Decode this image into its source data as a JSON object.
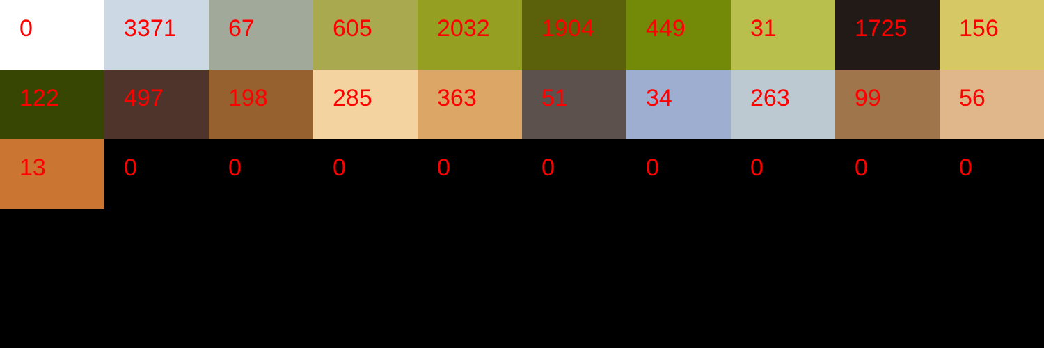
{
  "label_color": "#ff0000",
  "background_color": "#000000",
  "swatches": [
    {
      "color": "#ffffff",
      "count": "0"
    },
    {
      "color": "#cdd8e5",
      "count": "3371"
    },
    {
      "color": "#a1aa9a",
      "count": "67"
    },
    {
      "color": "#a9a950",
      "count": "605"
    },
    {
      "color": "#95a022",
      "count": "2032"
    },
    {
      "color": "#5b600a",
      "count": "1904"
    },
    {
      "color": "#738908",
      "count": "449"
    },
    {
      "color": "#b8bf4d",
      "count": "31"
    },
    {
      "color": "#221a16",
      "count": "1725"
    },
    {
      "color": "#d6c865",
      "count": "156"
    },
    {
      "color": "#374603",
      "count": "122"
    },
    {
      "color": "#4e342a",
      "count": "497"
    },
    {
      "color": "#96602f",
      "count": "198"
    },
    {
      "color": "#f3d4a0",
      "count": "285"
    },
    {
      "color": "#dca766",
      "count": "363"
    },
    {
      "color": "#5d514d",
      "count": "51"
    },
    {
      "color": "#9eaed1",
      "count": "34"
    },
    {
      "color": "#bdc9d1",
      "count": "263"
    },
    {
      "color": "#9f754c",
      "count": "99"
    },
    {
      "color": "#e0b68b",
      "count": "56"
    },
    {
      "color": "#cb7533",
      "count": "13"
    },
    {
      "color": "#000000",
      "count": "0"
    },
    {
      "color": "#000000",
      "count": "0"
    },
    {
      "color": "#000000",
      "count": "0"
    },
    {
      "color": "#000000",
      "count": "0"
    },
    {
      "color": "#000000",
      "count": "0"
    },
    {
      "color": "#000000",
      "count": "0"
    },
    {
      "color": "#000000",
      "count": "0"
    },
    {
      "color": "#000000",
      "count": "0"
    },
    {
      "color": "#000000",
      "count": "0"
    }
  ]
}
